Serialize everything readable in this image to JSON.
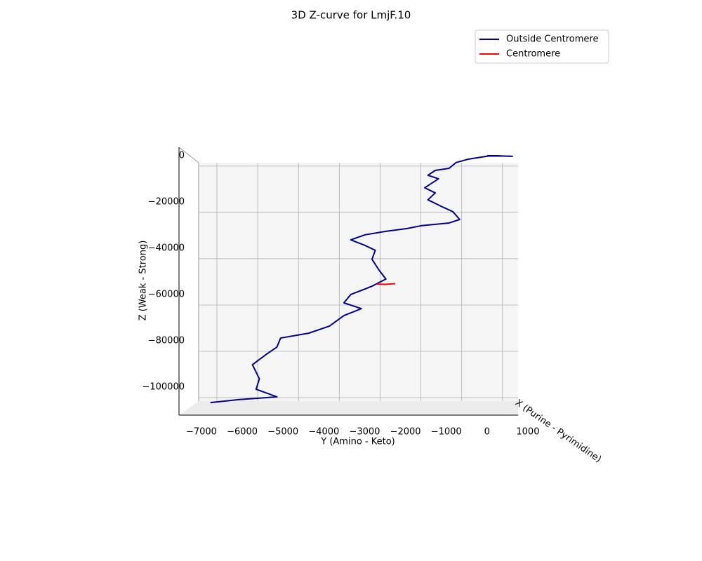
{
  "chart_data": {
    "type": "line",
    "title": "3D Z-curve for LmjF.10",
    "x_label": "Y (Amino - Keto)",
    "y_label": "Z (Weak - Strong)",
    "depth_label": "X (Purine - Pyrimidine)",
    "xlim": [
      -7550,
      760
    ],
    "ylim": [
      -112100,
      3600
    ],
    "xticks": [
      {
        "value": -7000,
        "label": "−7000"
      },
      {
        "value": -6000,
        "label": "−6000"
      },
      {
        "value": -5000,
        "label": "−5000"
      },
      {
        "value": -4000,
        "label": "−4000"
      },
      {
        "value": -3000,
        "label": "−3000"
      },
      {
        "value": -2000,
        "label": "−2000"
      },
      {
        "value": -1000,
        "label": "−1000"
      },
      0,
      1000
    ],
    "yticks": [
      0,
      {
        "value": -20000,
        "label": "−20000"
      },
      {
        "value": -40000,
        "label": "−40000"
      },
      {
        "value": -60000,
        "label": "−60000"
      },
      {
        "value": -80000,
        "label": "−80000"
      },
      {
        "value": -100000,
        "label": "−100000"
      }
    ],
    "grid": true,
    "legend": "upper right",
    "series": [
      {
        "name": "Outside Centromere",
        "color": "#00008b",
        "x": [
          0,
          620,
          100,
          -450,
          -760,
          -930,
          -1270,
          -1450,
          -1190,
          -1530,
          -1270,
          -1450,
          -1100,
          -840,
          -670,
          -930,
          -1620,
          -1960,
          -2480,
          -2990,
          -3340,
          -2990,
          -2740,
          -2820,
          -2650,
          -2480,
          -2820,
          -2990,
          -3340,
          -3510,
          -3080,
          -3510,
          -3860,
          -4370,
          -5060,
          -5150,
          -5400,
          -5750,
          -5580,
          -5660,
          -5150,
          -6090,
          -6780
        ],
        "values": [
          0,
          -300,
          0,
          -1500,
          -3000,
          -5500,
          -6400,
          -8500,
          -10000,
          -13900,
          -16100,
          -19100,
          -22100,
          -24200,
          -27600,
          -29100,
          -30300,
          -31500,
          -32700,
          -34200,
          -36400,
          -38800,
          -40900,
          -44800,
          -49400,
          -53300,
          -56400,
          -57600,
          -60000,
          -63600,
          -66100,
          -69100,
          -73600,
          -76700,
          -78800,
          -82700,
          -85700,
          -90300,
          -96400,
          -100900,
          -104200,
          -105400,
          -106700
        ]
      },
      {
        "name": "Centromere",
        "color": "#ff0000",
        "x": [
          -2700,
          -2500,
          -2250
        ],
        "values": [
          -55500,
          -55600,
          -55300
        ]
      }
    ]
  }
}
